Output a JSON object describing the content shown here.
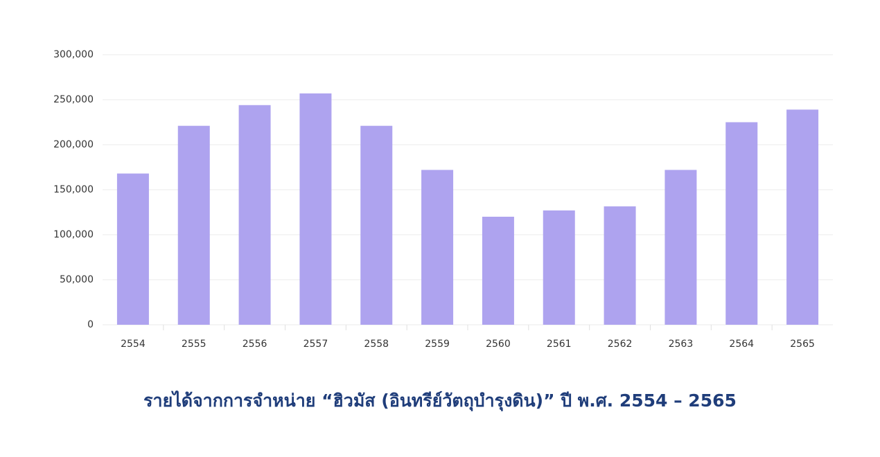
{
  "chart_data": {
    "type": "bar",
    "title": "รายได้จากการจำหน่าย “ฮิวมัส (อินทรีย์วัตถุบำรุงดิน)” ปี พ.ศ. 2554 – 2565",
    "categories": [
      "2554",
      "2555",
      "2556",
      "2557",
      "2558",
      "2559",
      "2560",
      "2561",
      "2562",
      "2563",
      "2564",
      "2565"
    ],
    "values": [
      168000,
      221000,
      244000,
      257000,
      221000,
      172000,
      120000,
      127000,
      131500,
      172000,
      225000,
      239000
    ],
    "color": "#aea3ef",
    "ylim": [
      0,
      300000
    ],
    "yticks": [
      0,
      {
        "value": 50000,
        "label": "50,000"
      },
      {
        "value": 100000,
        "label": "100,000"
      },
      {
        "value": 150000,
        "label": "150,000"
      },
      {
        "value": 200000,
        "label": "200,000"
      },
      {
        "value": 250000,
        "label": "250,000"
      },
      {
        "value": 300000,
        "label": "300,000"
      }
    ],
    "grid": true
  }
}
